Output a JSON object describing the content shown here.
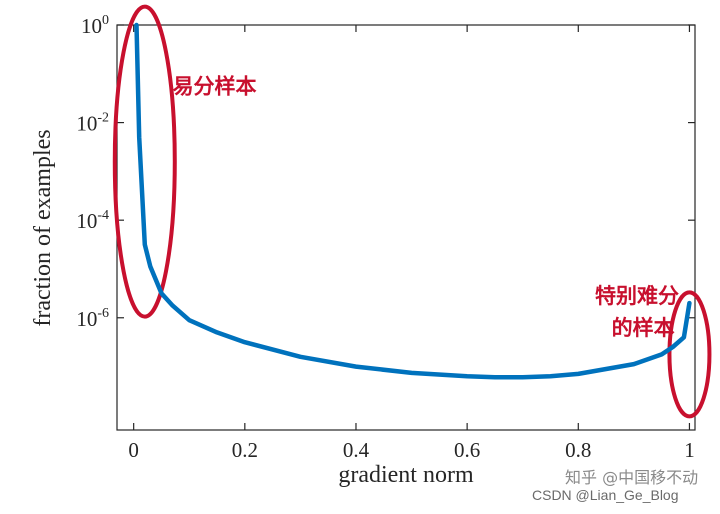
{
  "chart_data": {
    "type": "line",
    "title": "",
    "xlabel": "gradient norm",
    "ylabel": "fraction of examples",
    "xlim": [
      -0.03,
      1.01
    ],
    "ylim_log10": [
      -8.3,
      0
    ],
    "yscale": "log",
    "grid": false,
    "x_ticks": [
      {
        "value": 0,
        "label": "0"
      },
      {
        "value": 0.2,
        "label": "0.2"
      },
      {
        "value": 0.4,
        "label": "0.4"
      },
      {
        "value": 0.6,
        "label": "0.6"
      },
      {
        "value": 0.8,
        "label": "0.8"
      },
      {
        "value": 1,
        "label": "1"
      }
    ],
    "y_ticks": [
      {
        "exp": 0,
        "base": "10",
        "sup": "0"
      },
      {
        "exp": -2,
        "base": "10",
        "sup": "-2"
      },
      {
        "exp": -4,
        "base": "10",
        "sup": "-4"
      },
      {
        "exp": -6,
        "base": "10",
        "sup": "-6"
      }
    ],
    "series": [
      {
        "color": "#0072bd",
        "x": [
          0.005,
          0.01,
          0.02,
          0.03,
          0.05,
          0.07,
          0.1,
          0.15,
          0.2,
          0.3,
          0.4,
          0.5,
          0.6,
          0.65,
          0.7,
          0.75,
          0.8,
          0.85,
          0.9,
          0.95,
          0.97,
          0.99,
          1.0
        ],
        "log10_y": [
          0,
          -2.3,
          -4.5,
          -4.95,
          -5.5,
          -5.75,
          -6.05,
          -6.3,
          -6.5,
          -6.8,
          -7.0,
          -7.13,
          -7.2,
          -7.22,
          -7.22,
          -7.2,
          -7.15,
          -7.05,
          -6.95,
          -6.75,
          -6.6,
          -6.4,
          -5.7
        ]
      }
    ],
    "annotations": [
      {
        "text": "易分样本",
        "x": 0.07,
        "log10_y": -1.4
      },
      {
        "text": "特别难分",
        "x": 0.83,
        "log10_y": -5.7
      },
      {
        "text": "的样本",
        "x": 0.86,
        "log10_y": -6.35
      }
    ],
    "highlight_ellipses": [
      {
        "name": "easy-samples",
        "cx": 0.02,
        "log10_cy": -2.8
      },
      {
        "name": "hard-samples",
        "cx": 1.0,
        "log10_cy": -6.75
      }
    ],
    "highlight_color": "#c8102e"
  },
  "watermark": {
    "zhihu": "知乎 @中国移不动",
    "csdn": "CSDN @Lian_Ge_Blog"
  }
}
